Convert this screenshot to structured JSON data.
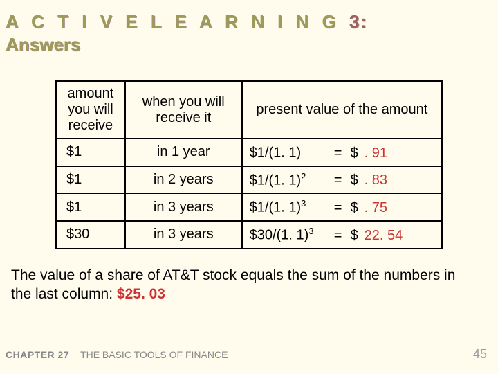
{
  "header": {
    "line1_prefix": "A C T I V E   L E A R N I N G",
    "line1_num": "3:",
    "line2": "Answers"
  },
  "table": {
    "headers": {
      "amount": "amount you will receive",
      "when": "when you will receive it",
      "pv": "present value of the amount"
    },
    "rows": [
      {
        "amount": "$1",
        "when": "in 1 year",
        "formula_base": "$1/(1. 1)",
        "exp": "",
        "eq": "=",
        "dollar": "$",
        "val": ". 91"
      },
      {
        "amount": "$1",
        "when": "in 2 years",
        "formula_base": "$1/(1. 1)",
        "exp": "2",
        "eq": "=",
        "dollar": "$",
        "val": ". 83"
      },
      {
        "amount": "$1",
        "when": "in 3 years",
        "formula_base": "$1/(1. 1)",
        "exp": "3",
        "eq": "=",
        "dollar": "$",
        "val": ". 75"
      },
      {
        "amount": "$30",
        "when": "in 3 years",
        "formula_base": "$30/(1. 1)",
        "exp": "3",
        "eq": "=",
        "dollar": "$",
        "val": "22. 54"
      }
    ]
  },
  "conclusion": {
    "text": "The value of a share of AT&T stock equals the sum of the numbers in the last column:  ",
    "total": "$25. 03"
  },
  "footer": {
    "chapter": "CHAPTER 27",
    "subtitle": "THE BASIC TOOLS OF FINANCE",
    "page": "45"
  },
  "style": {
    "background": "#fffcee",
    "title_color": "#9c9c58",
    "title_num_color": "#a06060",
    "red": "#cc3333",
    "footer_color": "#888888"
  }
}
